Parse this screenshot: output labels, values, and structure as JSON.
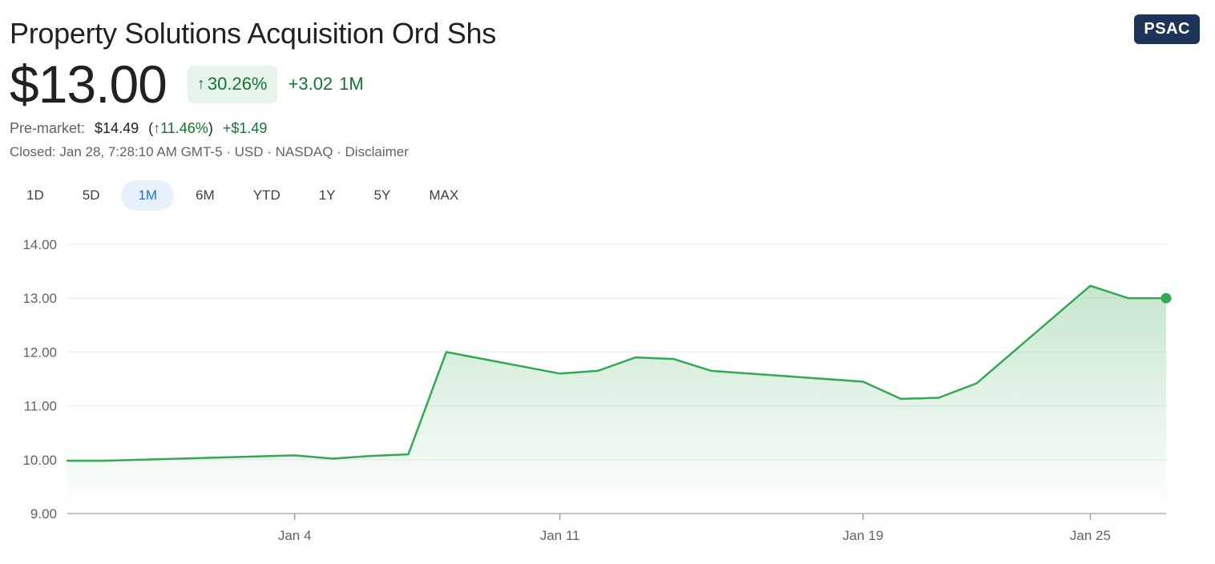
{
  "header": {
    "title": "Property Solutions Acquisition Ord Shs",
    "ticker": "PSAC"
  },
  "quote": {
    "price": "$13.00",
    "change_percent": "30.26%",
    "change_arrow_icon": "arrow-up-icon",
    "change_abs": "+3.02",
    "change_period": "1M"
  },
  "premarket": {
    "label": "Pre-market:",
    "price": "$14.49",
    "percent": "11.46%",
    "abs": "+$1.49"
  },
  "status": {
    "text": "Closed: Jan 28, 7:28:10 AM GMT-5 · USD · NASDAQ · Disclaimer"
  },
  "ranges": {
    "items": [
      "1D",
      "5D",
      "1M",
      "6M",
      "YTD",
      "1Y",
      "5Y",
      "MAX"
    ],
    "selected": "1M"
  },
  "colors": {
    "line": "#34a853",
    "positive_text": "#137333",
    "ticker_bg": "#1d3358",
    "active_tab_bg": "#e8f0fe",
    "active_tab_text": "#1a73e8"
  },
  "chart_data": {
    "type": "area",
    "xlabel": "",
    "ylabel": "",
    "ylim": [
      9,
      14
    ],
    "yticks": [
      "14.00",
      "13.00",
      "12.00",
      "11.00",
      "10.00",
      "9.00"
    ],
    "xticks": [
      {
        "label": "Jan 4",
        "date": "2021-01-04"
      },
      {
        "label": "Jan 11",
        "date": "2021-01-11"
      },
      {
        "label": "Jan 19",
        "date": "2021-01-19"
      },
      {
        "label": "Jan 25",
        "date": "2021-01-25"
      }
    ],
    "grid": true,
    "series": [
      {
        "x": [
          "2020-12-29",
          "2020-12-30",
          "2020-12-31",
          "2021-01-04",
          "2021-01-05",
          "2021-01-06",
          "2021-01-07",
          "2021-01-08",
          "2021-01-11",
          "2021-01-12",
          "2021-01-13",
          "2021-01-14",
          "2021-01-15",
          "2021-01-19",
          "2021-01-20",
          "2021-01-21",
          "2021-01-22",
          "2021-01-25",
          "2021-01-26",
          "2021-01-27"
        ],
        "y": [
          9.98,
          9.98,
          10.0,
          10.08,
          10.02,
          10.07,
          10.1,
          12.0,
          11.6,
          11.65,
          11.9,
          11.87,
          11.65,
          11.45,
          11.13,
          11.15,
          11.42,
          13.23,
          13.0,
          13.0
        ]
      }
    ]
  }
}
